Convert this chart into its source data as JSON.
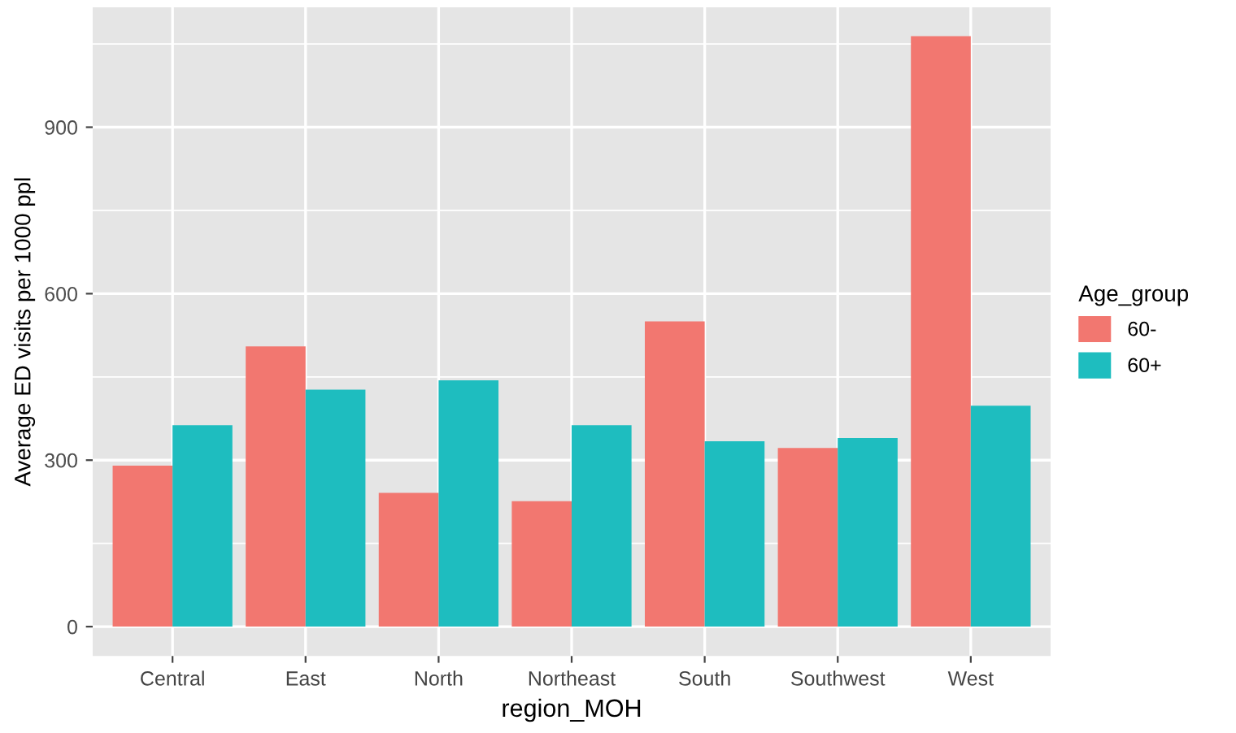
{
  "chart_data": {
    "type": "bar",
    "xlabel": "region_MOH",
    "ylabel": "Average ED visits per 1000 ppl",
    "legend_title": "Age_group",
    "categories": [
      "Central",
      "East",
      "North",
      "Northeast",
      "South",
      "Southwest",
      "West"
    ],
    "series": [
      {
        "name": "60-",
        "color": "#f27770",
        "values": [
          290,
          505,
          241,
          226,
          550,
          322,
          1064
        ]
      },
      {
        "name": "60+",
        "color": "#1ebdbf",
        "values": [
          363,
          427,
          444,
          363,
          334,
          340,
          398
        ]
      }
    ],
    "ylim": [
      -53,
      1116
    ],
    "yticks": [
      0,
      300,
      600,
      900
    ],
    "grid": true,
    "legend": "right"
  }
}
